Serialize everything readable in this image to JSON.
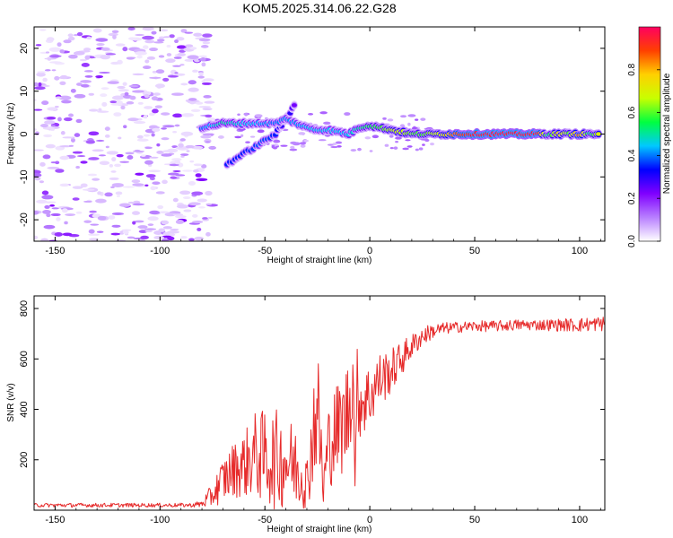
{
  "colors": {
    "snr_line": "#e62a2a",
    "axes": "#000000",
    "background": "#ffffff"
  },
  "chart_data": [
    {
      "type": "heatmap",
      "title": "KOM5.2025.314.06.22.G28",
      "xlabel": "Height of straight line (km)",
      "ylabel": "Frequency (Hz)",
      "xlim": [
        -160,
        112
      ],
      "ylim": [
        -25,
        25
      ],
      "xticks": [
        -150,
        -100,
        -50,
        0,
        50,
        100
      ],
      "yticks": [
        -20,
        -10,
        0,
        10,
        20
      ],
      "colorbar": {
        "label": "Normalized spectral amplitude",
        "range": [
          0,
          1
        ],
        "ticks": [
          0.0,
          0.2,
          0.4,
          0.6,
          0.8
        ],
        "tick_labels": [
          "0.0",
          "0.2",
          "0.4",
          "0.6",
          "0.8"
        ],
        "stops": [
          "#ffffff",
          "#b87fff",
          "#8000ff",
          "#0000ff",
          "#00c8ff",
          "#00ff40",
          "#c8ff00",
          "#ffd000",
          "#ff4000",
          "#ff0060"
        ]
      },
      "ridge": [
        {
          "x": -80,
          "f": 1.5,
          "a": 0.4
        },
        {
          "x": -75,
          "f": 2,
          "a": 0.45
        },
        {
          "x": -70,
          "f": 2.5,
          "a": 0.5
        },
        {
          "x": -65,
          "f": 2.5,
          "a": 0.48
        },
        {
          "x": -60,
          "f": 2.5,
          "a": 0.45
        },
        {
          "x": -55,
          "f": 2.5,
          "a": 0.45
        },
        {
          "x": -50,
          "f": 2.5,
          "a": 0.42
        },
        {
          "x": -45,
          "f": 2.5,
          "a": 0.4
        },
        {
          "x": -40,
          "f": 3.5,
          "a": 0.42
        },
        {
          "x": -35,
          "f": 2.5,
          "a": 0.42
        },
        {
          "x": -30,
          "f": 1.5,
          "a": 0.45
        },
        {
          "x": -25,
          "f": 1,
          "a": 0.45
        },
        {
          "x": -20,
          "f": 1,
          "a": 0.45
        },
        {
          "x": -15,
          "f": 0.5,
          "a": 0.45
        },
        {
          "x": -10,
          "f": 0,
          "a": 0.45
        },
        {
          "x": -5,
          "f": 1.5,
          "a": 0.5
        },
        {
          "x": 0,
          "f": 2,
          "a": 0.55
        },
        {
          "x": 5,
          "f": 1.5,
          "a": 0.58
        },
        {
          "x": 10,
          "f": 1,
          "a": 0.65
        },
        {
          "x": 15,
          "f": 0.5,
          "a": 0.68
        },
        {
          "x": 20,
          "f": 0,
          "a": 0.6
        },
        {
          "x": 25,
          "f": 0,
          "a": 0.58
        },
        {
          "x": 30,
          "f": 0,
          "a": 0.65
        },
        {
          "x": 35,
          "f": 0,
          "a": 0.68
        },
        {
          "x": 40,
          "f": 0,
          "a": 0.85
        },
        {
          "x": 50,
          "f": 0,
          "a": 0.95
        },
        {
          "x": 60,
          "f": 0,
          "a": 0.95
        },
        {
          "x": 70,
          "f": 0,
          "a": 0.95
        },
        {
          "x": 80,
          "f": 0,
          "a": 0.95
        },
        {
          "x": 85,
          "f": 0,
          "a": 0.5
        },
        {
          "x": 90,
          "f": 0,
          "a": 0.75
        },
        {
          "x": 95,
          "f": 0,
          "a": 0.6
        },
        {
          "x": 100,
          "f": 0,
          "a": 0.85
        },
        {
          "x": 105,
          "f": 0,
          "a": 0.5
        },
        {
          "x": 110,
          "f": 0,
          "a": 0.75
        }
      ],
      "branch": [
        {
          "x": -68,
          "f": -7,
          "a": 0.35
        },
        {
          "x": -63,
          "f": -5.5,
          "a": 0.35
        },
        {
          "x": -58,
          "f": -4,
          "a": 0.35
        },
        {
          "x": -53,
          "f": -2.5,
          "a": 0.38
        },
        {
          "x": -50,
          "f": -1.5,
          "a": 0.38
        },
        {
          "x": -45,
          "f": 0,
          "a": 0.35
        },
        {
          "x": -42,
          "f": 2,
          "a": 0.3
        },
        {
          "x": -38,
          "f": 5,
          "a": 0.3
        },
        {
          "x": -35,
          "f": 8,
          "a": 0.2
        }
      ]
    },
    {
      "type": "line",
      "xlabel": "Height of straight line (km)",
      "ylabel": "SNR (v/v)",
      "xlim": [
        -160,
        112
      ],
      "ylim": [
        0,
        850
      ],
      "xticks": [
        -150,
        -100,
        -50,
        0,
        50,
        100
      ],
      "yticks": [
        200,
        400,
        600,
        800
      ],
      "series": [
        {
          "name": "SNR",
          "x": [
            -160,
            -140,
            -120,
            -100,
            -85,
            -80,
            -75,
            -70,
            -65,
            -60,
            -55,
            -50,
            -45,
            -40,
            -35,
            -30,
            -27,
            -25,
            -22,
            -20,
            -17,
            -15,
            -12,
            -10,
            -8,
            -7,
            -6,
            -5,
            -3,
            0,
            3,
            5,
            10,
            15,
            20,
            25,
            30,
            35,
            40,
            50,
            60,
            70,
            80,
            90,
            100,
            110,
            112
          ],
          "values": [
            20,
            20,
            20,
            20,
            20,
            25,
            60,
            120,
            160,
            180,
            220,
            210,
            200,
            200,
            170,
            100,
            320,
            420,
            80,
            250,
            300,
            320,
            350,
            400,
            550,
            120,
            470,
            440,
            440,
            450,
            500,
            520,
            550,
            600,
            650,
            690,
            710,
            720,
            725,
            730,
            730,
            735,
            735,
            735,
            735,
            740,
            740
          ],
          "noise": [
            8,
            8,
            8,
            8,
            8,
            15,
            50,
            90,
            110,
            130,
            170,
            190,
            200,
            190,
            160,
            110,
            220,
            260,
            120,
            170,
            190,
            200,
            210,
            230,
            160,
            50,
            180,
            160,
            150,
            130,
            120,
            110,
            90,
            70,
            50,
            40,
            30,
            25,
            22,
            22,
            22,
            22,
            22,
            25,
            28,
            30,
            30
          ]
        }
      ]
    }
  ]
}
